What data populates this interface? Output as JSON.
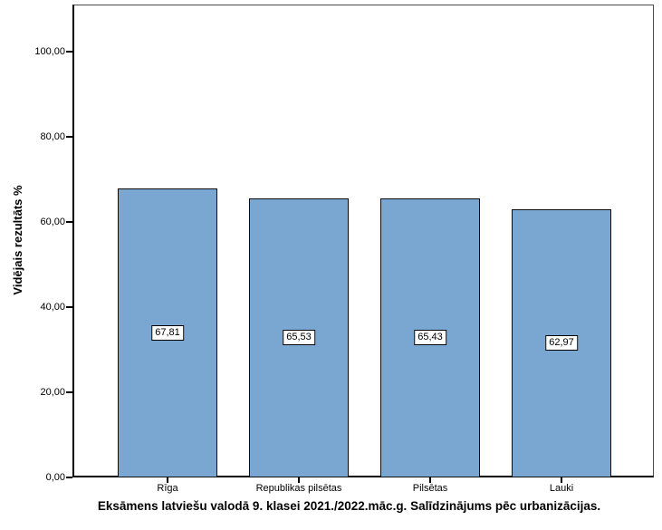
{
  "chart_data": {
    "type": "bar",
    "title": "Eksāmens latviešu valodā 9. klasei 2021./2022.māc.g. Salīdzinājums pēc urbanizācijas.",
    "xlabel": "",
    "ylabel": "Vidējais rezultāts %",
    "categories": [
      "Rīga",
      "Republikas pilsētas",
      "Pilsētas",
      "Lauki"
    ],
    "values": [
      67.81,
      65.53,
      65.43,
      62.97
    ],
    "value_labels": [
      "67,81",
      "65,53",
      "65,43",
      "62,97"
    ],
    "y_tick_values": [
      0,
      20,
      40,
      60,
      80,
      100
    ],
    "y_tick_labels": [
      "0,00",
      "20,00",
      "40,00",
      "60,00",
      "80,00",
      "100,00"
    ],
    "ylim": [
      0,
      111
    ],
    "grid": false,
    "legend": "none",
    "bar_color": "#7AA6D2",
    "bar_border_color": "#0d0d0d",
    "frame_color": "#4d4d4d",
    "axis_color": "#000000"
  }
}
